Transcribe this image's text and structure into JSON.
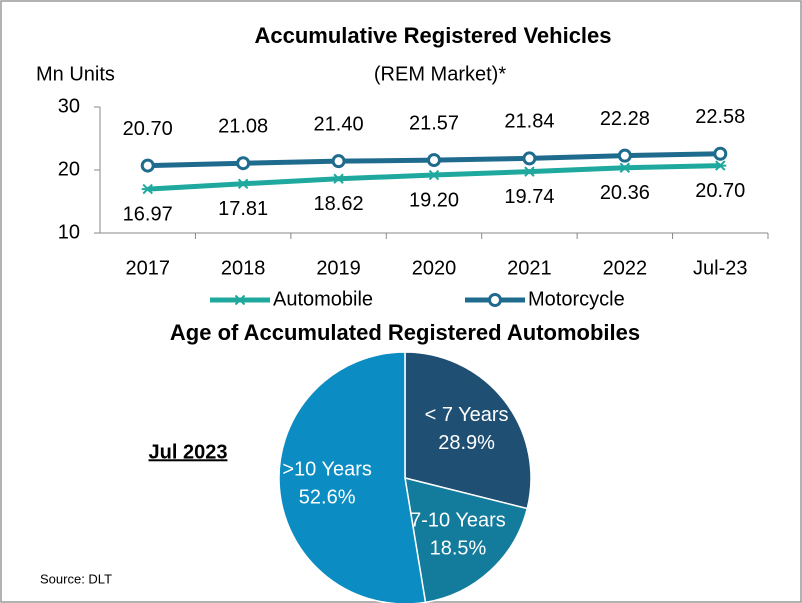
{
  "chart_data": [
    {
      "type": "line",
      "title": "Accumulative Registered Vehicles",
      "subtitle": "(REM Market)*",
      "y_label": "Mn Units",
      "categories": [
        "2017",
        "2018",
        "2019",
        "2020",
        "2021",
        "2022",
        "Jul-23"
      ],
      "series": [
        {
          "name": "Automobile",
          "color": "#1fa89e",
          "marker": "asterisk",
          "values": [
            16.97,
            17.81,
            18.62,
            19.2,
            19.74,
            20.36,
            20.7
          ],
          "value_labels": [
            "16.97",
            "17.81",
            "18.62",
            "19.20",
            "19.74",
            "20.36",
            "20.70"
          ]
        },
        {
          "name": "Motorcycle",
          "color": "#1f6b8e",
          "marker": "circle",
          "values": [
            20.7,
            21.08,
            21.4,
            21.57,
            21.84,
            22.28,
            22.58
          ],
          "value_labels": [
            "20.70",
            "21.08",
            "21.40",
            "21.57",
            "21.84",
            "22.28",
            "22.58"
          ]
        }
      ],
      "ylim": [
        10,
        30
      ],
      "yticks": [
        10,
        20,
        30
      ],
      "legend": "bottom"
    },
    {
      "type": "pie",
      "title": "Age of Accumulated Registered Automobiles",
      "annotation": "Jul 2023",
      "categories": [
        "< 7 Years",
        "7-10 Years",
        ">10 Years"
      ],
      "values": [
        28.9,
        18.5,
        52.6
      ],
      "value_labels": [
        "28.9%",
        "18.5%",
        "52.6%"
      ],
      "colors": [
        "#1f4f73",
        "#137b9c",
        "#0b8cc2"
      ]
    }
  ],
  "source": "Source: DLT"
}
